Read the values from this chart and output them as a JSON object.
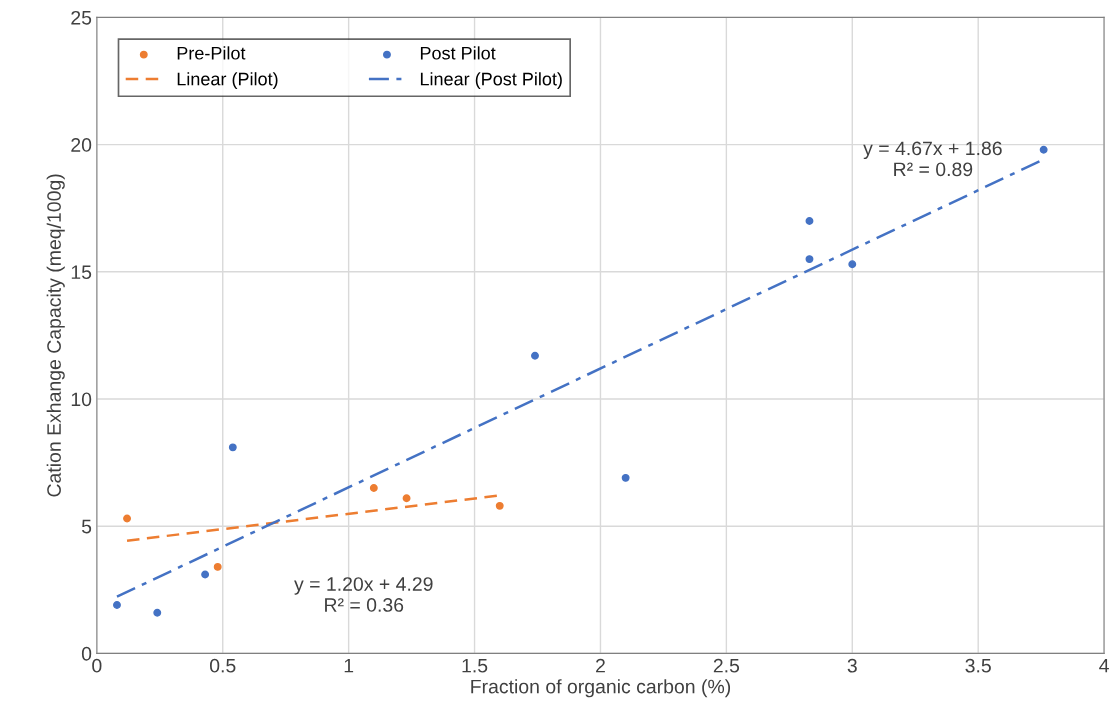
{
  "chart_data": {
    "type": "scatter",
    "xlabel": "Fraction of organic carbon (%)",
    "ylabel": "Cation Exhange Capacity (meq/100g)",
    "series": [
      {
        "name": "Pre-Pilot",
        "marker": "circle",
        "color": "#ed7d31",
        "x": [
          0.12,
          0.48,
          1.1,
          1.23,
          1.6
        ],
        "values": [
          5.3,
          3.4,
          6.5,
          6.1,
          5.8
        ]
      },
      {
        "name": "Linear (Pilot)",
        "type": "line",
        "marker": "none",
        "color": "#ed7d31",
        "line_style": "dashed",
        "x": [
          0.12,
          1.6
        ],
        "values": [
          4.43,
          6.21
        ]
      },
      {
        "name": "Post Pilot",
        "marker": "circle",
        "color": "#4472c4",
        "x": [
          0.08,
          0.24,
          0.43,
          0.54,
          1.74,
          2.1,
          2.83,
          2.83,
          3.0,
          3.76
        ],
        "values": [
          1.9,
          1.6,
          3.1,
          8.1,
          11.7,
          6.9,
          17.0,
          15.5,
          15.3,
          19.8
        ]
      },
      {
        "name": "Linear (Post Pilot)",
        "type": "line",
        "marker": "none",
        "color": "#4472c4",
        "line_style": "dashdot",
        "x": [
          0.08,
          3.76
        ],
        "values": [
          2.23,
          19.42
        ]
      }
    ],
    "annotations": [
      "y = 4.67x + 1.86\nR² = 0.89",
      "y = 1.20x + 4.29\nR² = 0.36"
    ],
    "xlim": [
      0,
      4
    ],
    "xticks": [
      0,
      0.5,
      1,
      1.5,
      2,
      2.5,
      3,
      3.5,
      4
    ],
    "ylim": [
      0,
      25
    ],
    "yticks": [
      0,
      5,
      10,
      15,
      20,
      25
    ],
    "grid": true,
    "legend": "top left"
  }
}
